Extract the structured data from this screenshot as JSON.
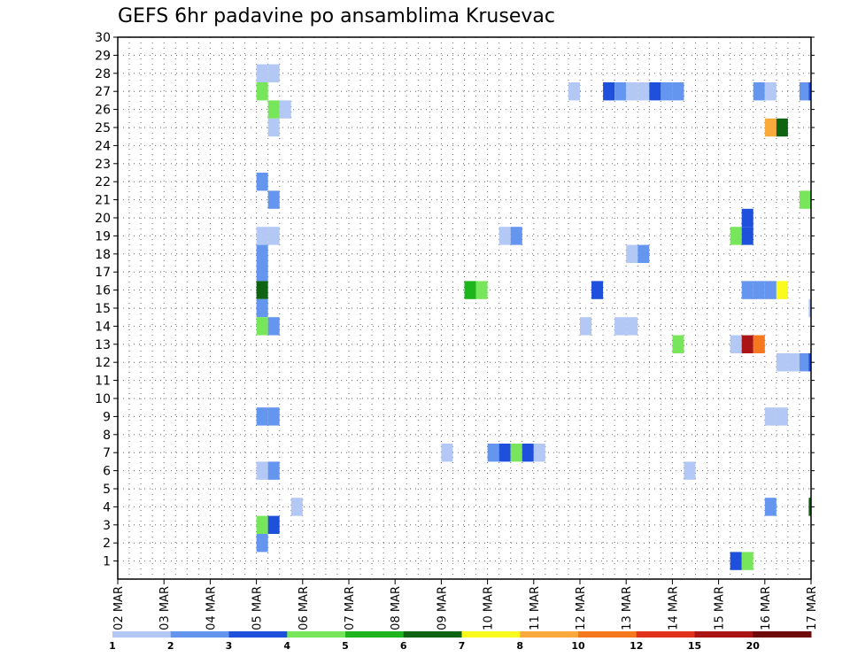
{
  "chart_data": {
    "type": "heatmap",
    "title": "GEFS 6hr padavine po ansamblima Krusevac",
    "xlabel": "",
    "ylabel": "",
    "x_tick_labels": [
      "02 MAR",
      "03 MAR",
      "04 MAR",
      "05 MAR",
      "06 MAR",
      "07 MAR",
      "08 MAR",
      "09 MAR",
      "10 MAR",
      "11 MAR",
      "12 MAR",
      "13 MAR",
      "14 MAR",
      "15 MAR",
      "16 MAR",
      "17 MAR"
    ],
    "xlim_days": [
      2,
      17
    ],
    "y_tick_labels": [
      1,
      2,
      3,
      4,
      5,
      6,
      7,
      8,
      9,
      10,
      11,
      12,
      13,
      14,
      15,
      16,
      17,
      18,
      19,
      20,
      21,
      22,
      23,
      24,
      25,
      26,
      27,
      28,
      29,
      30
    ],
    "ylim": [
      0,
      30
    ],
    "grid": true,
    "colorbar": {
      "labels": [
        "1",
        "2",
        "3",
        "4",
        "5",
        "6",
        "7",
        "8",
        "10",
        "12",
        "15",
        "20"
      ],
      "colors": [
        "#b4c8f5",
        "#6496f0",
        "#1e50dc",
        "#78e65a",
        "#1eb41e",
        "#0f6414",
        "#fafa1e",
        "#faaa3c",
        "#f5781e",
        "#e1321e",
        "#aa1414",
        "#6e0a0a"
      ]
    },
    "cells": [
      {
        "member": 28,
        "x": 5.0,
        "level": 1
      },
      {
        "member": 28,
        "x": 5.25,
        "level": 1
      },
      {
        "member": 27,
        "x": 5.0,
        "level": 4
      },
      {
        "member": 26,
        "x": 5.25,
        "level": 4
      },
      {
        "member": 26,
        "x": 5.5,
        "level": 1
      },
      {
        "member": 25,
        "x": 5.25,
        "level": 1
      },
      {
        "member": 22,
        "x": 5.0,
        "level": 2
      },
      {
        "member": 21,
        "x": 5.25,
        "level": 2
      },
      {
        "member": 19,
        "x": 5.0,
        "level": 1
      },
      {
        "member": 19,
        "x": 5.25,
        "level": 1
      },
      {
        "member": 18,
        "x": 5.0,
        "level": 2
      },
      {
        "member": 17,
        "x": 5.0,
        "level": 2
      },
      {
        "member": 16,
        "x": 5.0,
        "level": 6
      },
      {
        "member": 15,
        "x": 5.0,
        "level": 2
      },
      {
        "member": 14,
        "x": 5.0,
        "level": 4
      },
      {
        "member": 14,
        "x": 5.25,
        "level": 2
      },
      {
        "member": 9,
        "x": 5.0,
        "level": 2
      },
      {
        "member": 9,
        "x": 5.25,
        "level": 2
      },
      {
        "member": 6,
        "x": 5.0,
        "level": 1
      },
      {
        "member": 6,
        "x": 5.25,
        "level": 2
      },
      {
        "member": 4,
        "x": 5.75,
        "level": 1
      },
      {
        "member": 3,
        "x": 5.0,
        "level": 4
      },
      {
        "member": 3,
        "x": 5.25,
        "level": 3
      },
      {
        "member": 2,
        "x": 5.0,
        "level": 2
      },
      {
        "member": 7,
        "x": 9.0,
        "level": 1
      },
      {
        "member": 7,
        "x": 10.0,
        "level": 2
      },
      {
        "member": 7,
        "x": 10.25,
        "level": 3
      },
      {
        "member": 7,
        "x": 10.5,
        "level": 4
      },
      {
        "member": 7,
        "x": 10.75,
        "level": 3
      },
      {
        "member": 7,
        "x": 11.0,
        "level": 1
      },
      {
        "member": 16,
        "x": 9.5,
        "level": 5
      },
      {
        "member": 16,
        "x": 9.75,
        "level": 4
      },
      {
        "member": 19,
        "x": 10.25,
        "level": 1
      },
      {
        "member": 19,
        "x": 10.5,
        "level": 2
      },
      {
        "member": 27,
        "x": 11.75,
        "level": 1
      },
      {
        "member": 27,
        "x": 12.5,
        "level": 3
      },
      {
        "member": 27,
        "x": 12.75,
        "level": 2
      },
      {
        "member": 27,
        "x": 13.0,
        "level": 1
      },
      {
        "member": 27,
        "x": 13.25,
        "level": 1
      },
      {
        "member": 27,
        "x": 13.5,
        "level": 3
      },
      {
        "member": 27,
        "x": 13.75,
        "level": 2
      },
      {
        "member": 27,
        "x": 14.0,
        "level": 2
      },
      {
        "member": 14,
        "x": 12.0,
        "level": 1
      },
      {
        "member": 16,
        "x": 12.25,
        "level": 3
      },
      {
        "member": 14,
        "x": 12.75,
        "level": 1
      },
      {
        "member": 14,
        "x": 13.0,
        "level": 1
      },
      {
        "member": 18,
        "x": 13.0,
        "level": 1
      },
      {
        "member": 18,
        "x": 13.25,
        "level": 2
      },
      {
        "member": 13,
        "x": 14.0,
        "level": 4
      },
      {
        "member": 6,
        "x": 14.25,
        "level": 1
      },
      {
        "member": 19,
        "x": 15.25,
        "level": 4
      },
      {
        "member": 19,
        "x": 15.5,
        "level": 3
      },
      {
        "member": 20,
        "x": 15.5,
        "level": 3
      },
      {
        "member": 16,
        "x": 15.5,
        "level": 2
      },
      {
        "member": 16,
        "x": 15.75,
        "level": 2
      },
      {
        "member": 16,
        "x": 16.0,
        "level": 2
      },
      {
        "member": 16,
        "x": 16.25,
        "level": 7
      },
      {
        "member": 13,
        "x": 15.25,
        "level": 1
      },
      {
        "member": 13,
        "x": 15.5,
        "level": 11
      },
      {
        "member": 13,
        "x": 15.75,
        "level": 9
      },
      {
        "member": 1,
        "x": 15.25,
        "level": 3
      },
      {
        "member": 1,
        "x": 15.5,
        "level": 4
      },
      {
        "member": 27,
        "x": 15.75,
        "level": 2
      },
      {
        "member": 27,
        "x": 16.0,
        "level": 1
      },
      {
        "member": 25,
        "x": 16.0,
        "level": 8
      },
      {
        "member": 25,
        "x": 16.25,
        "level": 6
      },
      {
        "member": 12,
        "x": 16.25,
        "level": 1
      },
      {
        "member": 12,
        "x": 16.5,
        "level": 1
      },
      {
        "member": 12,
        "x": 16.75,
        "level": 2
      },
      {
        "member": 12,
        "x": 16.95,
        "level": 3
      },
      {
        "member": 9,
        "x": 16.0,
        "level": 1
      },
      {
        "member": 9,
        "x": 16.25,
        "level": 1
      },
      {
        "member": 4,
        "x": 16.0,
        "level": 2
      },
      {
        "member": 21,
        "x": 16.75,
        "level": 4
      },
      {
        "member": 27,
        "x": 16.75,
        "level": 2
      },
      {
        "member": 27,
        "x": 16.95,
        "level": 3
      },
      {
        "member": 15,
        "x": 16.95,
        "level": 1
      },
      {
        "member": 4,
        "x": 16.95,
        "level": 6
      }
    ]
  }
}
